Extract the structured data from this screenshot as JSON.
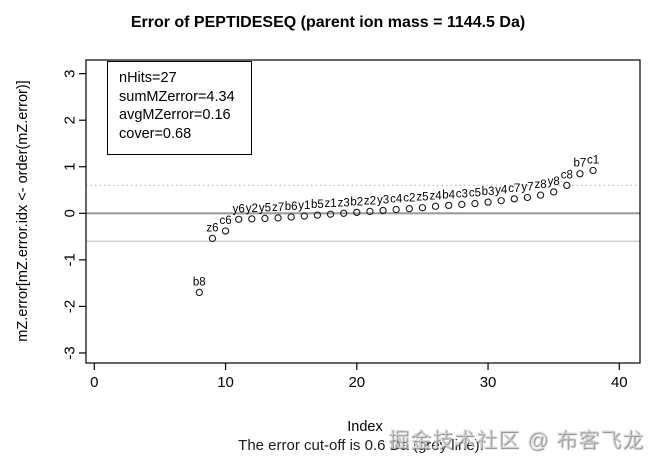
{
  "title": "Error of PEPTIDESEQ (parent ion mass = 1144.5 Da)",
  "legend": {
    "lines": [
      "nHits=27",
      "sumMZerror=4.34",
      "avgMZerror=0.16",
      "cover=0.68"
    ]
  },
  "caption": "The error cut-off is 0.6 Da (grey line).",
  "watermark": "掘金技术社区 @ 布客飞龙",
  "colors": {
    "box": "#000000",
    "zero_line": "#9b9b9b",
    "cutoff_line": "#c6c6c6",
    "marker": "#1a1a1a",
    "watermark": "#d8d8d8"
  },
  "chart_data": {
    "type": "scatter",
    "title": "Error of PEPTIDESEQ (parent ion mass = 1144.5 Da)",
    "xlabel": "Index",
    "ylabel": "mZ.error[mZ.error.idx <- order(mZ.error)]",
    "xlim": [
      -1.5,
      41.5
    ],
    "ylim": [
      -3.2,
      3.2
    ],
    "x_ticks": [
      0,
      10,
      20,
      30,
      40
    ],
    "y_ticks": [
      -3,
      -2,
      -1,
      0,
      1,
      2,
      3
    ],
    "grid": false,
    "zero_line": 0,
    "cutoff": 0.6,
    "legend_position": "top-left",
    "points": [
      {
        "x": 8,
        "y": -1.7,
        "label": "b8"
      },
      {
        "x": 9,
        "y": -0.54,
        "label": "z6"
      },
      {
        "x": 10,
        "y": -0.38,
        "label": "c6"
      },
      {
        "x": 11,
        "y": -0.13,
        "label": "y6"
      },
      {
        "x": 12,
        "y": -0.12,
        "label": "y2"
      },
      {
        "x": 13,
        "y": -0.11,
        "label": "y5"
      },
      {
        "x": 14,
        "y": -0.1,
        "label": "z7"
      },
      {
        "x": 15,
        "y": -0.08,
        "label": "b6"
      },
      {
        "x": 16,
        "y": -0.06,
        "label": "y1"
      },
      {
        "x": 17,
        "y": -0.04,
        "label": "b5"
      },
      {
        "x": 18,
        "y": -0.02,
        "label": "z1"
      },
      {
        "x": 19,
        "y": 0.0,
        "label": "z3"
      },
      {
        "x": 20,
        "y": 0.02,
        "label": "b2"
      },
      {
        "x": 21,
        "y": 0.04,
        "label": "z2"
      },
      {
        "x": 22,
        "y": 0.06,
        "label": "y3"
      },
      {
        "x": 23,
        "y": 0.08,
        "label": "c4"
      },
      {
        "x": 24,
        "y": 0.1,
        "label": "c2"
      },
      {
        "x": 25,
        "y": 0.12,
        "label": "z5"
      },
      {
        "x": 26,
        "y": 0.15,
        "label": "z4"
      },
      {
        "x": 27,
        "y": 0.17,
        "label": "b4"
      },
      {
        "x": 28,
        "y": 0.19,
        "label": "c3"
      },
      {
        "x": 29,
        "y": 0.21,
        "label": "c5"
      },
      {
        "x": 30,
        "y": 0.24,
        "label": "b3"
      },
      {
        "x": 31,
        "y": 0.27,
        "label": "y4"
      },
      {
        "x": 32,
        "y": 0.31,
        "label": "c7"
      },
      {
        "x": 33,
        "y": 0.34,
        "label": "y7"
      },
      {
        "x": 34,
        "y": 0.39,
        "label": "z8"
      },
      {
        "x": 35,
        "y": 0.46,
        "label": "y8"
      },
      {
        "x": 36,
        "y": 0.6,
        "label": "c8"
      },
      {
        "x": 37,
        "y": 0.85,
        "label": "b7"
      },
      {
        "x": 38,
        "y": 0.92,
        "label": "c1"
      }
    ]
  }
}
